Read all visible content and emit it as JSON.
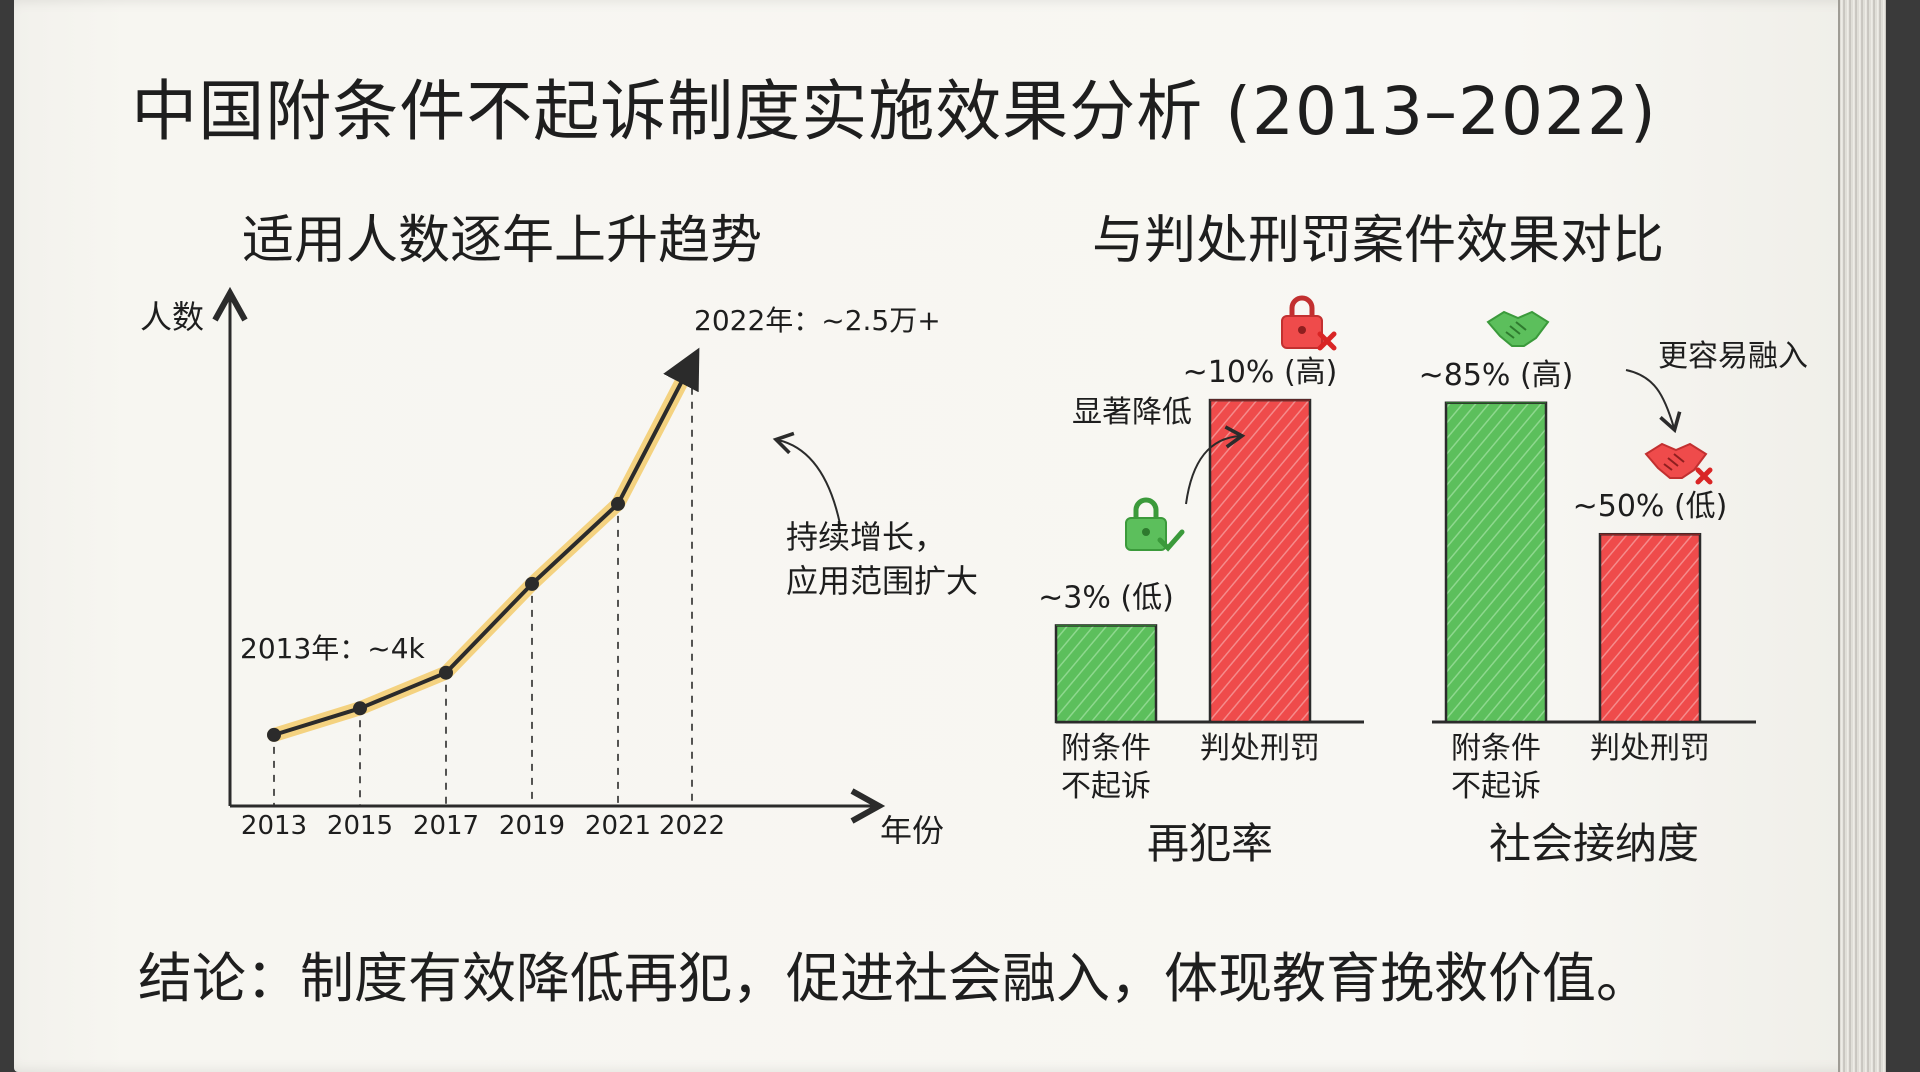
{
  "title": "中国附条件不起诉制度实施效果分析 (2013–2022)",
  "conclusion": "结论：制度有效降低再犯，促进社会融入，体现教育挽救价值。",
  "colors": {
    "green": "#5cbf5c",
    "red": "#ef4b4b",
    "line": "#2b2b2b",
    "highlight": "#f3c65a"
  },
  "icons": {
    "lock_check": "lock-check-icon",
    "lock_x": "lock-x-icon",
    "handshake": "handshake-icon",
    "handshake_x": "handshake-x-icon"
  },
  "chart_data": [
    {
      "type": "line",
      "title": "适用人数逐年上升趋势",
      "ylabel": "人数",
      "xlabel": "年份",
      "x": [
        "2013",
        "2015",
        "2017",
        "2019",
        "2021",
        "2022"
      ],
      "values": [
        4000,
        5500,
        7500,
        12500,
        17000,
        25000
      ],
      "annotations": {
        "start": "2013年：~4k",
        "end": "2022年：~2.5万+",
        "note_line1": "持续增长，",
        "note_line2": "应用范围扩大"
      }
    },
    {
      "type": "bar",
      "title": "与判处刑罚案件效果对比",
      "groups": [
        {
          "name": "再犯率",
          "bars": [
            {
              "label_line1": "附条件",
              "label_line2": "不起诉",
              "value": 3,
              "label": "~3% (低)",
              "color": "green"
            },
            {
              "label_line1": "判处刑罚",
              "label_line2": "",
              "value": 10,
              "label": "~10% (高)",
              "color": "red"
            }
          ],
          "note": "显著降低"
        },
        {
          "name": "社会接纳度",
          "bars": [
            {
              "label_line1": "附条件",
              "label_line2": "不起诉",
              "value": 85,
              "label": "~85% (高)",
              "color": "green"
            },
            {
              "label_line1": "判处刑罚",
              "label_line2": "",
              "value": 50,
              "label": "~50% (低)",
              "color": "red"
            }
          ],
          "note": "更容易融入"
        }
      ]
    }
  ]
}
